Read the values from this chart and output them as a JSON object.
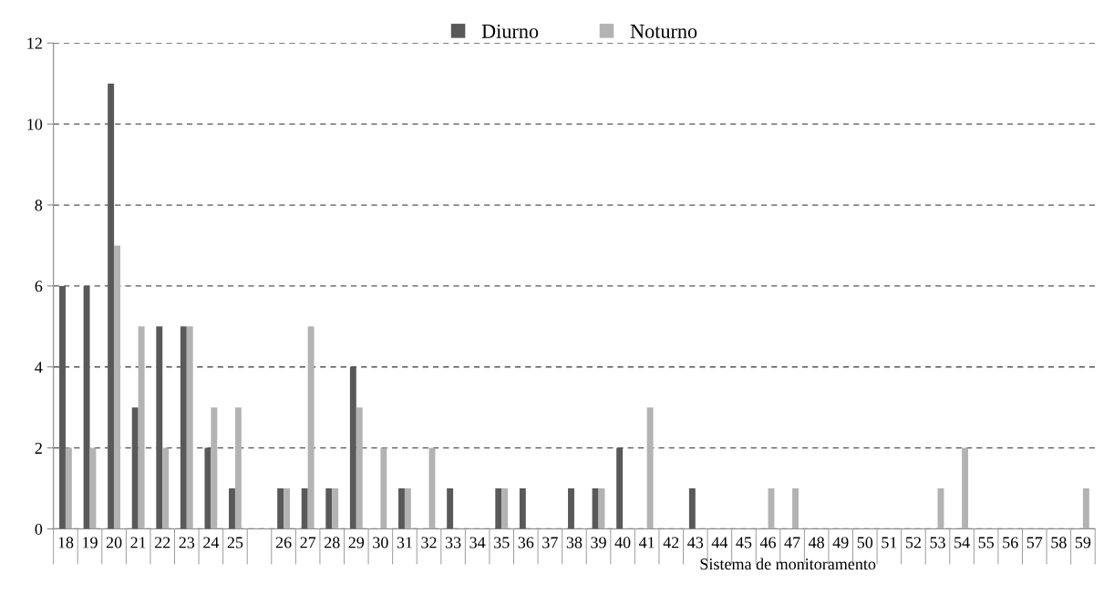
{
  "chart_data": {
    "type": "bar",
    "xlabel": "Sistema de monitoramento",
    "categories": [
      "18",
      "19",
      "20",
      "21",
      "22",
      "23",
      "24",
      "25",
      null,
      "26",
      "27",
      "28",
      "29",
      "30",
      "31",
      "32",
      "33",
      "34",
      "35",
      "36",
      "37",
      "38",
      "39",
      "40",
      "41",
      "42",
      "43",
      "44",
      "45",
      "46",
      "47",
      "48",
      "49",
      "50",
      "51",
      "52",
      "53",
      "54",
      "55",
      "56",
      "57",
      "58",
      "59"
    ],
    "series": [
      {
        "name": "Diurno",
        "color": "#595959",
        "values": [
          6,
          6,
          11,
          3,
          5,
          5,
          2,
          1,
          null,
          1,
          1,
          1,
          4,
          0,
          1,
          0,
          1,
          0,
          1,
          1,
          0,
          1,
          1,
          2,
          0,
          0,
          1,
          0,
          0,
          0,
          0,
          0,
          0,
          0,
          0,
          0,
          0,
          0,
          0,
          0,
          0,
          0,
          0
        ]
      },
      {
        "name": "Noturno",
        "color": "#b3b3b3",
        "values": [
          2,
          2,
          7,
          5,
          2,
          5,
          3,
          3,
          null,
          1,
          5,
          1,
          3,
          2,
          1,
          2,
          0,
          0,
          1,
          0,
          0,
          0,
          1,
          0,
          3,
          0,
          0,
          0,
          0,
          1,
          1,
          0,
          0,
          0,
          0,
          0,
          1,
          2,
          0,
          0,
          0,
          0,
          1
        ]
      }
    ],
    "ylim": [
      0,
      12
    ],
    "yticks": [
      0,
      2,
      4,
      6,
      8,
      10,
      12
    ],
    "grid": "y",
    "legend": "top"
  }
}
